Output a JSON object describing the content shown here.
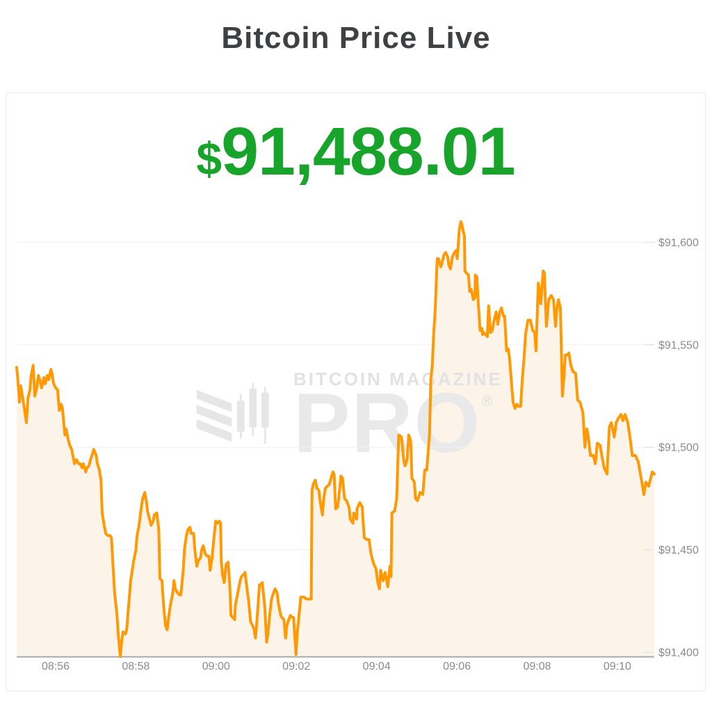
{
  "header": {
    "title": "Bitcoin Price Live"
  },
  "price_display": {
    "currency_symbol": "$",
    "value": "91,488.01"
  },
  "watermark": {
    "brand": "BITCOIN MAGAZINE",
    "product": "PRO",
    "registered_mark": "®"
  },
  "chart_data": {
    "type": "area",
    "title": "Bitcoin Price Live",
    "series_name": "BTC price (USD)",
    "x_unit": "minutes after 08:00 (56 = 08:56)",
    "xlabel": "",
    "ylabel": "",
    "grid": true,
    "legend": false,
    "xlim": [
      55.03,
      70.92
    ],
    "ylim": [
      91398,
      91613
    ],
    "x_ticks": [
      {
        "t": 56,
        "label": "08:56"
      },
      {
        "t": 58,
        "label": "08:58"
      },
      {
        "t": 60,
        "label": "09:00"
      },
      {
        "t": 62,
        "label": "09:02"
      },
      {
        "t": 64,
        "label": "09:04"
      },
      {
        "t": 66,
        "label": "09:06"
      },
      {
        "t": 68,
        "label": "09:08"
      },
      {
        "t": 70,
        "label": "09:10"
      }
    ],
    "y_ticks": [
      {
        "value": 91400,
        "label": "$91,400"
      },
      {
        "value": 91450,
        "label": "$91,450"
      },
      {
        "value": 91500,
        "label": "$91,500"
      },
      {
        "value": 91550,
        "label": "$91,550"
      },
      {
        "value": 91600,
        "label": "$91,600"
      }
    ],
    "colors": {
      "line": "#ff9905",
      "fill": "#fdf4e9",
      "grid": "#f0f1f0",
      "grid_tick": "#dcdcdc",
      "axis": "#a9a9a9",
      "tick_text": "#8b8b8b",
      "price_text": "#18a32b",
      "title_text": "#3e4042",
      "watermark": "#e6e6e6"
    },
    "points": [
      [
        55.03,
        91539
      ],
      [
        55.06,
        91533
      ],
      [
        55.1,
        91522
      ],
      [
        55.13,
        91530
      ],
      [
        55.18,
        91524
      ],
      [
        55.22,
        91519
      ],
      [
        55.27,
        91512
      ],
      [
        55.31,
        91524
      ],
      [
        55.36,
        91528
      ],
      [
        55.39,
        91535
      ],
      [
        55.44,
        91540
      ],
      [
        55.48,
        91525
      ],
      [
        55.53,
        91529
      ],
      [
        55.57,
        91535
      ],
      [
        55.62,
        91532
      ],
      [
        55.65,
        91529
      ],
      [
        55.71,
        91534
      ],
      [
        55.74,
        91531
      ],
      [
        55.79,
        91535
      ],
      [
        55.83,
        91533
      ],
      [
        55.88,
        91538
      ],
      [
        55.91,
        91536
      ],
      [
        55.95,
        91531
      ],
      [
        56.0,
        91529
      ],
      [
        56.05,
        91528
      ],
      [
        56.09,
        91518
      ],
      [
        56.14,
        91521
      ],
      [
        56.17,
        91519
      ],
      [
        56.23,
        91506
      ],
      [
        56.26,
        91509
      ],
      [
        56.31,
        91504
      ],
      [
        56.35,
        91501
      ],
      [
        56.4,
        91499
      ],
      [
        56.43,
        91496
      ],
      [
        56.47,
        91492
      ],
      [
        56.52,
        91494
      ],
      [
        56.57,
        91492
      ],
      [
        56.61,
        91492
      ],
      [
        56.66,
        91490
      ],
      [
        56.69,
        91492
      ],
      [
        56.75,
        91488
      ],
      [
        56.78,
        91490
      ],
      [
        56.83,
        91491
      ],
      [
        56.87,
        91494
      ],
      [
        56.92,
        91497
      ],
      [
        56.95,
        91499
      ],
      [
        57.01,
        91496
      ],
      [
        57.04,
        91492
      ],
      [
        57.09,
        91489
      ],
      [
        57.13,
        91484
      ],
      [
        57.16,
        91468
      ],
      [
        57.21,
        91462
      ],
      [
        57.25,
        91458
      ],
      [
        57.3,
        91457
      ],
      [
        57.35,
        91457
      ],
      [
        57.39,
        91456
      ],
      [
        57.44,
        91439
      ],
      [
        57.47,
        91429
      ],
      [
        57.53,
        91418
      ],
      [
        57.56,
        91409
      ],
      [
        57.61,
        91398
      ],
      [
        57.65,
        91406
      ],
      [
        57.68,
        91410
      ],
      [
        57.74,
        91409
      ],
      [
        57.77,
        91411
      ],
      [
        57.82,
        91423
      ],
      [
        57.87,
        91435
      ],
      [
        57.91,
        91440
      ],
      [
        57.94,
        91444
      ],
      [
        58.0,
        91450
      ],
      [
        58.03,
        91457
      ],
      [
        58.08,
        91462
      ],
      [
        58.13,
        91470
      ],
      [
        58.17,
        91475
      ],
      [
        58.22,
        91478
      ],
      [
        58.26,
        91474
      ],
      [
        58.29,
        91469
      ],
      [
        58.34,
        91465
      ],
      [
        58.38,
        91462
      ],
      [
        58.43,
        91464
      ],
      [
        58.46,
        91467
      ],
      [
        58.52,
        91468
      ],
      [
        58.57,
        91460
      ],
      [
        58.6,
        91436
      ],
      [
        58.65,
        91435
      ],
      [
        58.69,
        91423
      ],
      [
        58.74,
        91413
      ],
      [
        58.78,
        91411
      ],
      [
        58.81,
        91416
      ],
      [
        58.86,
        91423
      ],
      [
        58.92,
        91429
      ],
      [
        58.95,
        91435
      ],
      [
        58.98,
        91431
      ],
      [
        59.04,
        91429
      ],
      [
        59.09,
        91428
      ],
      [
        59.12,
        91428
      ],
      [
        59.18,
        91440
      ],
      [
        59.21,
        91450
      ],
      [
        59.26,
        91457
      ],
      [
        59.3,
        91460
      ],
      [
        59.35,
        91461
      ],
      [
        59.38,
        91458
      ],
      [
        59.44,
        91458
      ],
      [
        59.47,
        91450
      ],
      [
        59.52,
        91442
      ],
      [
        59.56,
        91445
      ],
      [
        59.61,
        91446
      ],
      [
        59.64,
        91450
      ],
      [
        59.68,
        91452
      ],
      [
        59.73,
        91448
      ],
      [
        59.77,
        91447
      ],
      [
        59.82,
        91447
      ],
      [
        59.85,
        91440
      ],
      [
        59.9,
        91446
      ],
      [
        59.94,
        91455
      ],
      [
        59.99,
        91464
      ],
      [
        60.04,
        91463
      ],
      [
        60.08,
        91464
      ],
      [
        60.11,
        91463
      ],
      [
        60.13,
        91444
      ],
      [
        60.16,
        91438
      ],
      [
        60.2,
        91434
      ],
      [
        60.25,
        91443
      ],
      [
        60.3,
        91444
      ],
      [
        60.34,
        91433
      ],
      [
        60.37,
        91418
      ],
      [
        60.42,
        91417
      ],
      [
        60.46,
        91416
      ],
      [
        60.48,
        91423
      ],
      [
        60.51,
        91426
      ],
      [
        60.56,
        91431
      ],
      [
        60.6,
        91435
      ],
      [
        60.63,
        91437
      ],
      [
        60.69,
        91438
      ],
      [
        60.72,
        91439
      ],
      [
        60.77,
        91431
      ],
      [
        60.81,
        91425
      ],
      [
        60.86,
        91415
      ],
      [
        60.91,
        91413
      ],
      [
        60.95,
        91411
      ],
      [
        60.98,
        91407
      ],
      [
        61.03,
        91419
      ],
      [
        61.08,
        91433
      ],
      [
        61.12,
        91433
      ],
      [
        61.15,
        91434
      ],
      [
        61.21,
        91423
      ],
      [
        61.26,
        91405
      ],
      [
        61.29,
        91409
      ],
      [
        61.34,
        91419
      ],
      [
        61.38,
        91426
      ],
      [
        61.43,
        91429
      ],
      [
        61.47,
        91431
      ],
      [
        61.52,
        91429
      ],
      [
        61.55,
        91424
      ],
      [
        61.61,
        91418
      ],
      [
        61.64,
        91417
      ],
      [
        61.69,
        91416
      ],
      [
        61.73,
        91407
      ],
      [
        61.76,
        91413
      ],
      [
        61.81,
        91416
      ],
      [
        61.85,
        91418
      ],
      [
        61.9,
        91417
      ],
      [
        61.93,
        91417
      ],
      [
        61.99,
        91399
      ],
      [
        62.02,
        91409
      ],
      [
        62.07,
        91419
      ],
      [
        62.11,
        91427
      ],
      [
        62.16,
        91427
      ],
      [
        62.19,
        91427
      ],
      [
        62.25,
        91426
      ],
      [
        62.3,
        91426
      ],
      [
        62.33,
        91426
      ],
      [
        62.37,
        91426
      ],
      [
        62.39,
        91479
      ],
      [
        62.42,
        91482
      ],
      [
        62.47,
        91484
      ],
      [
        62.51,
        91480
      ],
      [
        62.56,
        91479
      ],
      [
        62.59,
        91474
      ],
      [
        62.65,
        91467
      ],
      [
        62.68,
        91475
      ],
      [
        62.72,
        91480
      ],
      [
        62.77,
        91481
      ],
      [
        62.82,
        91482
      ],
      [
        62.85,
        91484
      ],
      [
        62.91,
        91488
      ],
      [
        62.94,
        91487
      ],
      [
        62.98,
        91470
      ],
      [
        63.03,
        91471
      ],
      [
        63.08,
        91480
      ],
      [
        63.11,
        91486
      ],
      [
        63.15,
        91485
      ],
      [
        63.2,
        91475
      ],
      [
        63.25,
        91474
      ],
      [
        63.29,
        91472
      ],
      [
        63.32,
        91470
      ],
      [
        63.34,
        91465
      ],
      [
        63.41,
        91463
      ],
      [
        63.43,
        91468
      ],
      [
        63.5,
        91465
      ],
      [
        63.51,
        91470
      ],
      [
        63.58,
        91473
      ],
      [
        63.64,
        91471
      ],
      [
        63.69,
        91456
      ],
      [
        63.76,
        91455
      ],
      [
        63.81,
        91455
      ],
      [
        63.86,
        91448
      ],
      [
        63.93,
        91443
      ],
      [
        63.98,
        91441
      ],
      [
        64.03,
        91434
      ],
      [
        64.07,
        91431
      ],
      [
        64.1,
        91440
      ],
      [
        64.16,
        91435
      ],
      [
        64.21,
        91439
      ],
      [
        64.28,
        91432
      ],
      [
        64.33,
        91442
      ],
      [
        64.36,
        91437
      ],
      [
        64.38,
        91468
      ],
      [
        64.45,
        91469
      ],
      [
        64.5,
        91475
      ],
      [
        64.55,
        91506
      ],
      [
        64.62,
        91505
      ],
      [
        64.68,
        91493
      ],
      [
        64.71,
        91491
      ],
      [
        64.76,
        91494
      ],
      [
        64.8,
        91506
      ],
      [
        64.85,
        91503
      ],
      [
        64.88,
        91485
      ],
      [
        64.94,
        91483
      ],
      [
        64.97,
        91475
      ],
      [
        65.02,
        91474
      ],
      [
        65.08,
        91478
      ],
      [
        65.15,
        91477
      ],
      [
        65.2,
        91489
      ],
      [
        65.25,
        91489
      ],
      [
        65.32,
        91507
      ],
      [
        65.35,
        91533
      ],
      [
        65.39,
        91541
      ],
      [
        65.42,
        91555
      ],
      [
        65.46,
        91567
      ],
      [
        65.49,
        91582
      ],
      [
        65.51,
        91592
      ],
      [
        65.54,
        91592
      ],
      [
        65.6,
        91588
      ],
      [
        65.63,
        91590
      ],
      [
        65.68,
        91594
      ],
      [
        65.72,
        91595
      ],
      [
        65.77,
        91593
      ],
      [
        65.8,
        91589
      ],
      [
        65.84,
        91587
      ],
      [
        65.89,
        91593
      ],
      [
        65.94,
        91595
      ],
      [
        65.98,
        91596
      ],
      [
        66.01,
        91592
      ],
      [
        66.06,
        91606
      ],
      [
        66.1,
        91610
      ],
      [
        66.12,
        91609
      ],
      [
        66.15,
        91606
      ],
      [
        66.19,
        91603
      ],
      [
        66.2,
        91586
      ],
      [
        66.24,
        91585
      ],
      [
        66.29,
        91584
      ],
      [
        66.32,
        91576
      ],
      [
        66.36,
        91577
      ],
      [
        66.41,
        91572
      ],
      [
        66.45,
        91573
      ],
      [
        66.46,
        91584
      ],
      [
        66.5,
        91583
      ],
      [
        66.53,
        91571
      ],
      [
        66.58,
        91557
      ],
      [
        66.62,
        91558
      ],
      [
        66.64,
        91555
      ],
      [
        66.67,
        91556
      ],
      [
        66.71,
        91555
      ],
      [
        66.76,
        91554
      ],
      [
        66.79,
        91569
      ],
      [
        66.84,
        91556
      ],
      [
        66.88,
        91557
      ],
      [
        66.93,
        91562
      ],
      [
        66.98,
        91566
      ],
      [
        67.02,
        91560
      ],
      [
        67.07,
        91566
      ],
      [
        67.11,
        91568
      ],
      [
        67.16,
        91564
      ],
      [
        67.19,
        91564
      ],
      [
        67.24,
        91547
      ],
      [
        67.28,
        91548
      ],
      [
        67.31,
        91544
      ],
      [
        67.33,
        91539
      ],
      [
        67.4,
        91522
      ],
      [
        67.45,
        91519
      ],
      [
        67.5,
        91521
      ],
      [
        67.54,
        91520
      ],
      [
        67.59,
        91520
      ],
      [
        67.63,
        91533
      ],
      [
        67.68,
        91545
      ],
      [
        67.71,
        91555
      ],
      [
        67.77,
        91562
      ],
      [
        67.8,
        91562
      ],
      [
        67.83,
        91562
      ],
      [
        67.89,
        91557
      ],
      [
        67.94,
        91556
      ],
      [
        67.97,
        91547
      ],
      [
        68.03,
        91580
      ],
      [
        68.06,
        91575
      ],
      [
        68.09,
        91570
      ],
      [
        68.15,
        91586
      ],
      [
        68.18,
        91585
      ],
      [
        68.23,
        91559
      ],
      [
        68.29,
        91572
      ],
      [
        68.32,
        91573
      ],
      [
        68.35,
        91574
      ],
      [
        68.41,
        91572
      ],
      [
        68.46,
        91559
      ],
      [
        68.49,
        91567
      ],
      [
        68.53,
        91572
      ],
      [
        68.58,
        91568
      ],
      [
        68.63,
        91525
      ],
      [
        68.67,
        91535
      ],
      [
        68.7,
        91545
      ],
      [
        68.75,
        91545
      ],
      [
        68.79,
        91546
      ],
      [
        68.84,
        91540
      ],
      [
        68.89,
        91537
      ],
      [
        68.96,
        91536
      ],
      [
        69.01,
        91523
      ],
      [
        69.07,
        91522
      ],
      [
        69.14,
        91517
      ],
      [
        69.19,
        91500
      ],
      [
        69.24,
        91509
      ],
      [
        69.27,
        91506
      ],
      [
        69.33,
        91496
      ],
      [
        69.4,
        91496
      ],
      [
        69.45,
        91492
      ],
      [
        69.5,
        91502
      ],
      [
        69.57,
        91501
      ],
      [
        69.62,
        91495
      ],
      [
        69.67,
        91490
      ],
      [
        69.74,
        91487
      ],
      [
        69.8,
        91510
      ],
      [
        69.85,
        91512
      ],
      [
        69.92,
        91505
      ],
      [
        69.97,
        91512
      ],
      [
        70.02,
        91514
      ],
      [
        70.09,
        91516
      ],
      [
        70.14,
        91513
      ],
      [
        70.19,
        91516
      ],
      [
        70.26,
        91512
      ],
      [
        70.32,
        91504
      ],
      [
        70.37,
        91496
      ],
      [
        70.45,
        91496
      ],
      [
        70.52,
        91493
      ],
      [
        70.61,
        91483
      ],
      [
        70.66,
        91477
      ],
      [
        70.71,
        91483
      ],
      [
        70.78,
        91481
      ],
      [
        70.87,
        91488
      ],
      [
        70.92,
        91487
      ]
    ]
  }
}
